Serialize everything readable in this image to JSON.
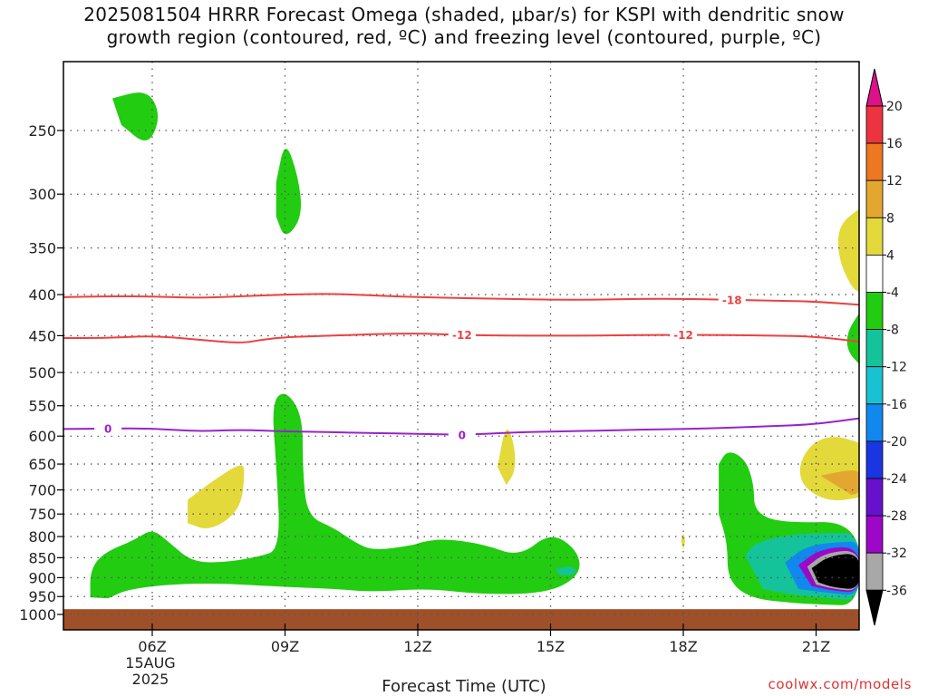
{
  "chart_data": {
    "type": "heatmap",
    "title_line1": "2025081504 HRRR Forecast Omega (shaded, μbar/s) for KSPI with dendritic snow",
    "title_line2": "growth region (contoured, red, ºC) and freezing level (contoured, purple, ºC)",
    "xlabel": "Forecast Time (UTC)",
    "x_ticks": [
      {
        "t": 6,
        "label": "06Z"
      },
      {
        "t": 9,
        "label": "09Z"
      },
      {
        "t": 12,
        "label": "12Z"
      },
      {
        "t": 15,
        "label": "15Z"
      },
      {
        "t": 18,
        "label": "18Z"
      },
      {
        "t": 21,
        "label": "21Z"
      }
    ],
    "x_date_label": [
      "15AUG",
      "2025"
    ],
    "xlim": [
      4,
      22
    ],
    "ylim": [
      1000,
      200
    ],
    "y_ticks": [
      250,
      300,
      350,
      400,
      450,
      500,
      550,
      600,
      650,
      700,
      750,
      800,
      850,
      900,
      950,
      1000
    ],
    "grid": true,
    "contours": [
      {
        "name": "-18",
        "color": "#ee4040",
        "points": [
          [
            4,
            403
          ],
          [
            5,
            402
          ],
          [
            6,
            402
          ],
          [
            7,
            404
          ],
          [
            8,
            402
          ],
          [
            9,
            400
          ],
          [
            10,
            399
          ],
          [
            11,
            401
          ],
          [
            12,
            403
          ],
          [
            13,
            404
          ],
          [
            14,
            405
          ],
          [
            15,
            406
          ],
          [
            16,
            406
          ],
          [
            17,
            405
          ],
          [
            18,
            405
          ],
          [
            19,
            406
          ],
          [
            20,
            407
          ],
          [
            21,
            408
          ],
          [
            22,
            412
          ]
        ],
        "labels": [
          19.1
        ]
      },
      {
        "name": "-12",
        "color": "#ee4040",
        "points": [
          [
            4,
            453
          ],
          [
            5,
            453
          ],
          [
            6,
            450
          ],
          [
            7,
            455
          ],
          [
            8,
            460
          ],
          [
            8.5,
            455
          ],
          [
            9,
            452
          ],
          [
            10,
            450
          ],
          [
            11,
            448
          ],
          [
            12,
            447
          ],
          [
            13,
            449
          ],
          [
            14,
            450
          ],
          [
            15,
            450
          ],
          [
            16,
            450
          ],
          [
            17,
            449
          ],
          [
            18,
            449
          ],
          [
            19,
            449
          ],
          [
            20,
            450
          ],
          [
            21,
            451
          ],
          [
            22,
            458
          ]
        ],
        "labels": [
          13.0,
          18.0
        ]
      },
      {
        "name": "0",
        "color": "#9922cc",
        "points": [
          [
            4,
            588
          ],
          [
            5,
            587
          ],
          [
            6,
            587
          ],
          [
            7,
            592
          ],
          [
            8,
            589
          ],
          [
            9,
            592
          ],
          [
            10,
            593
          ],
          [
            11,
            595
          ],
          [
            12,
            596
          ],
          [
            13,
            598
          ],
          [
            14,
            594
          ],
          [
            15,
            592
          ],
          [
            16,
            591
          ],
          [
            17,
            589
          ],
          [
            18,
            588
          ],
          [
            19,
            586
          ],
          [
            20,
            583
          ],
          [
            21,
            580
          ],
          [
            22,
            570
          ]
        ],
        "labels": [
          5.0,
          13.0
        ]
      }
    ],
    "omega_regions": [
      {
        "value": -6,
        "pts": [
          [
            5.1,
            228
          ],
          [
            5.9,
            222
          ],
          [
            6.2,
            240
          ],
          [
            5.9,
            262
          ],
          [
            5.3,
            246
          ]
        ]
      },
      {
        "value": -6,
        "pts": [
          [
            8.8,
            290
          ],
          [
            9.0,
            256
          ],
          [
            9.3,
            285
          ],
          [
            9.4,
            320
          ],
          [
            9.0,
            342
          ],
          [
            8.8,
            320
          ]
        ]
      },
      {
        "value": -6,
        "pts": [
          [
            4.6,
            952
          ],
          [
            4.6,
            880
          ],
          [
            4.9,
            838
          ],
          [
            5.6,
            808
          ],
          [
            6,
            782
          ],
          [
            6.4,
            815
          ],
          [
            6.9,
            860
          ],
          [
            7.6,
            862
          ],
          [
            8.4,
            848
          ],
          [
            8.9,
            830
          ],
          [
            8.8,
            650
          ],
          [
            8.7,
            545
          ],
          [
            9,
            525
          ],
          [
            9.4,
            565
          ],
          [
            9.4,
            660
          ],
          [
            9.5,
            755
          ],
          [
            10.1,
            780
          ],
          [
            10.6,
            815
          ],
          [
            11,
            833
          ],
          [
            11.9,
            820
          ],
          [
            12.1,
            812
          ],
          [
            12.6,
            805
          ],
          [
            13.5,
            818
          ],
          [
            14.3,
            848
          ],
          [
            15,
            790
          ],
          [
            15.6,
            830
          ],
          [
            15.7,
            890
          ],
          [
            15,
            940
          ],
          [
            13.5,
            945
          ],
          [
            12.2,
            928
          ],
          [
            11,
            938
          ],
          [
            10.2,
            930
          ],
          [
            9,
            924
          ],
          [
            7,
            912
          ],
          [
            5.5,
            928
          ],
          [
            5,
            955
          ]
        ]
      },
      {
        "value": -6,
        "pts": [
          [
            18.8,
            650
          ],
          [
            19.0,
            624
          ],
          [
            19.4,
            640
          ],
          [
            19.6,
            690
          ],
          [
            19.6,
            745
          ],
          [
            20.2,
            770
          ],
          [
            22,
            765
          ],
          [
            22,
            975
          ],
          [
            21.1,
            972
          ],
          [
            20.5,
            968
          ],
          [
            19.5,
            955
          ],
          [
            19,
            905
          ],
          [
            19,
            815
          ],
          [
            18.8,
            750
          ]
        ]
      },
      {
        "value": -6,
        "pts": [
          [
            22,
            420
          ],
          [
            21.7,
            445
          ],
          [
            21.7,
            470
          ],
          [
            22,
            490
          ]
        ]
      },
      {
        "value": -10,
        "pts": [
          [
            15.1,
            878
          ],
          [
            15.5,
            870
          ],
          [
            15.6,
            888
          ],
          [
            15.4,
            895
          ],
          [
            15.2,
            892
          ]
        ]
      },
      {
        "value": -10,
        "pts": [
          [
            19.4,
            845
          ],
          [
            19.6,
            815
          ],
          [
            20.4,
            795
          ],
          [
            21.3,
            792
          ],
          [
            22,
            792
          ],
          [
            22,
            962
          ],
          [
            21.3,
            955
          ],
          [
            20.6,
            948
          ],
          [
            19.8,
            930
          ]
        ]
      },
      {
        "value": -18,
        "pts": [
          [
            20.3,
            862
          ],
          [
            20.8,
            820
          ],
          [
            21.6,
            812
          ],
          [
            22,
            812
          ],
          [
            22,
            948
          ],
          [
            21.4,
            942
          ],
          [
            20.6,
            930
          ]
        ]
      },
      {
        "value": -30,
        "pts": [
          [
            20.6,
            868
          ],
          [
            21.1,
            828
          ],
          [
            22,
            822
          ],
          [
            22,
            940
          ],
          [
            21.4,
            935
          ],
          [
            20.9,
            922
          ]
        ]
      },
      {
        "value": -34,
        "pts": [
          [
            20.8,
            872
          ],
          [
            21.2,
            838
          ],
          [
            22,
            830
          ],
          [
            22,
            936
          ],
          [
            21.4,
            930
          ],
          [
            21.0,
            918
          ]
        ]
      },
      {
        "value": -40,
        "pts": [
          [
            20.9,
            876
          ],
          [
            21.3,
            845
          ],
          [
            22,
            838
          ],
          [
            22,
            932
          ],
          [
            21.4,
            926
          ],
          [
            21.05,
            912
          ]
        ]
      },
      {
        "value": 6,
        "pts": [
          [
            22,
            312
          ],
          [
            21.5,
            328
          ],
          [
            21.5,
            360
          ],
          [
            21.8,
            392
          ],
          [
            22,
            398
          ]
        ]
      },
      {
        "value": 6,
        "pts": [
          [
            13.8,
            655
          ],
          [
            14.0,
            575
          ],
          [
            14.2,
            620
          ],
          [
            14.2,
            665
          ],
          [
            14.0,
            690
          ]
        ]
      },
      {
        "value": 6,
        "pts": [
          [
            17.95,
            810
          ],
          [
            18.0,
            790
          ],
          [
            18.05,
            810
          ],
          [
            18.0,
            830
          ]
        ]
      },
      {
        "value": 6,
        "pts": [
          [
            6.8,
            720
          ],
          [
            7.4,
            680
          ],
          [
            8.0,
            648
          ],
          [
            8.1,
            660
          ],
          [
            8.0,
            742
          ],
          [
            7.3,
            788
          ],
          [
            6.8,
            770
          ]
        ]
      },
      {
        "value": 6,
        "pts": [
          [
            22,
            612
          ],
          [
            21.4,
            598
          ],
          [
            20.9,
            612
          ],
          [
            20.6,
            652
          ],
          [
            20.7,
            695
          ],
          [
            21.3,
            725
          ],
          [
            22,
            715
          ]
        ]
      },
      {
        "value": 10,
        "pts": [
          [
            21.1,
            672
          ],
          [
            21.8,
            660
          ],
          [
            22,
            665
          ],
          [
            22,
            705
          ],
          [
            21.8,
            710
          ]
        ]
      }
    ],
    "surface": {
      "color": "#a05028",
      "top_hPa": 985
    },
    "colorbar": {
      "levels": [
        20,
        16,
        12,
        8,
        4,
        -4,
        -8,
        -12,
        -16,
        -20,
        -24,
        -28,
        -32,
        -36
      ],
      "bins": [
        {
          "lo": 16,
          "hi": 20,
          "color": "#ee3340"
        },
        {
          "lo": 12,
          "hi": 16,
          "color": "#ee7722"
        },
        {
          "lo": 8,
          "hi": 12,
          "color": "#e3a731"
        },
        {
          "lo": 4,
          "hi": 8,
          "color": "#e3d93a"
        },
        {
          "lo": -4,
          "hi": 4,
          "color": "#ffffff"
        },
        {
          "lo": -8,
          "hi": -4,
          "color": "#22cc11"
        },
        {
          "lo": -12,
          "hi": -8,
          "color": "#15c39a"
        },
        {
          "lo": -16,
          "hi": -12,
          "color": "#19c2d2"
        },
        {
          "lo": -20,
          "hi": -16,
          "color": "#1188ee"
        },
        {
          "lo": -24,
          "hi": -20,
          "color": "#1a36e0"
        },
        {
          "lo": -28,
          "hi": -24,
          "color": "#6611cc"
        },
        {
          "lo": -32,
          "hi": -28,
          "color": "#9c07c8"
        },
        {
          "lo": -36,
          "hi": -32,
          "color": "#a8a8a8"
        }
      ],
      "over_color": "#dd1188",
      "under_color": "#000000"
    },
    "credit": "coolwx.com/models"
  }
}
